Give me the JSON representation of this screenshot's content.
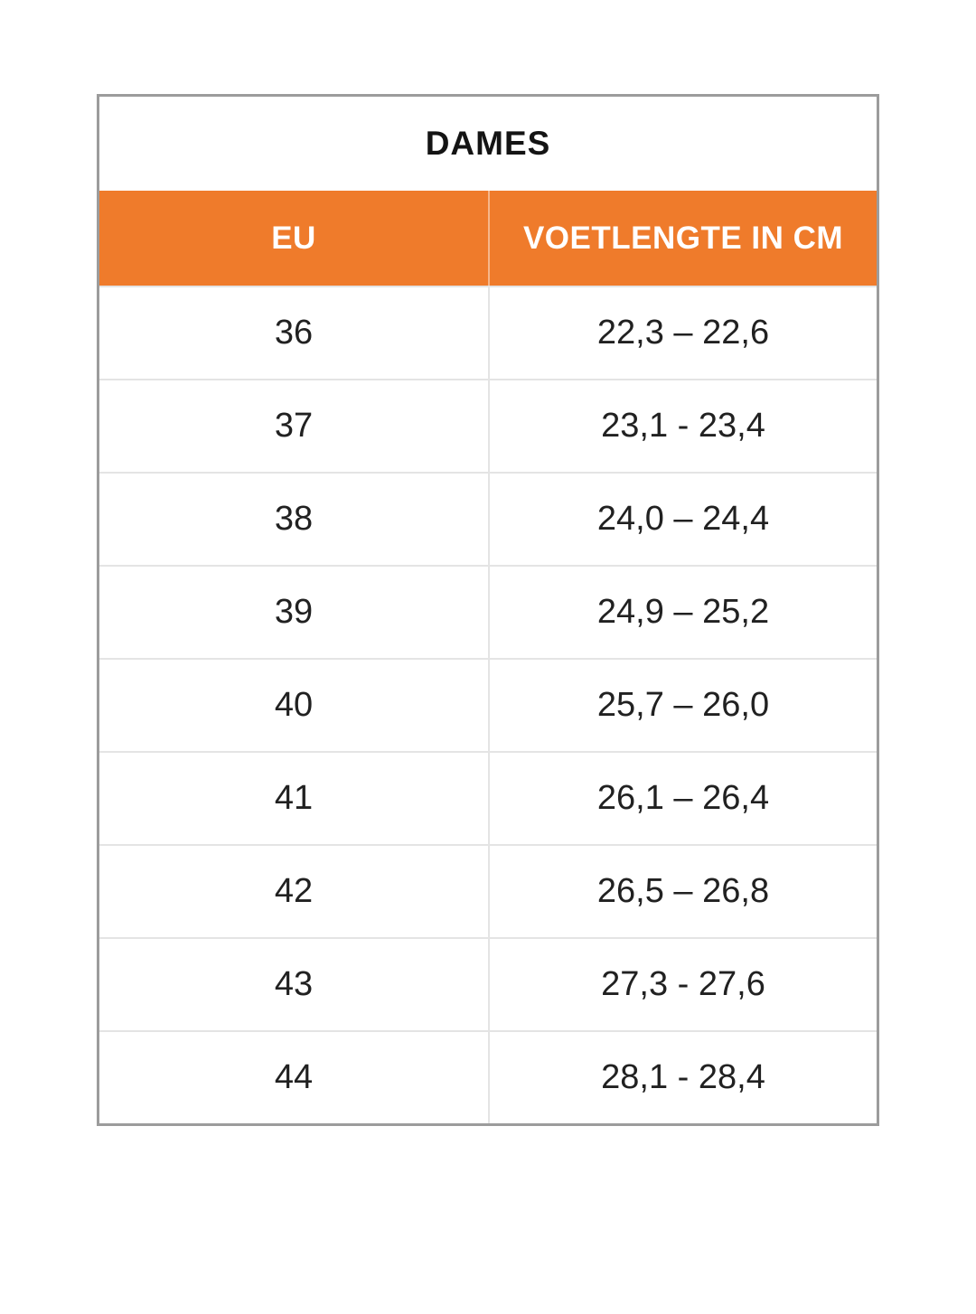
{
  "chart_data": {
    "type": "table",
    "title": "DAMES",
    "columns": [
      "EU",
      "VOETLENGTE IN CM"
    ],
    "rows": [
      [
        "36",
        "22,3 – 22,6"
      ],
      [
        "37",
        "23,1 - 23,4"
      ],
      [
        "38",
        "24,0 – 24,4"
      ],
      [
        "39",
        "24,9 – 25,2"
      ],
      [
        "40",
        "25,7 – 26,0"
      ],
      [
        "41",
        "26,1 – 26,4"
      ],
      [
        "42",
        "26,5 – 26,8"
      ],
      [
        "43",
        "27,3 - 27,6"
      ],
      [
        "44",
        "28,1 - 28,4"
      ]
    ]
  },
  "colors": {
    "header_bg": "#EF7B2B",
    "header_text": "#ffffff",
    "title_text": "#141414",
    "body_text": "#212121",
    "outer_border": "#9c9c9c",
    "inner_border": "#e4e4e4",
    "page_bg": "#ffffff"
  }
}
